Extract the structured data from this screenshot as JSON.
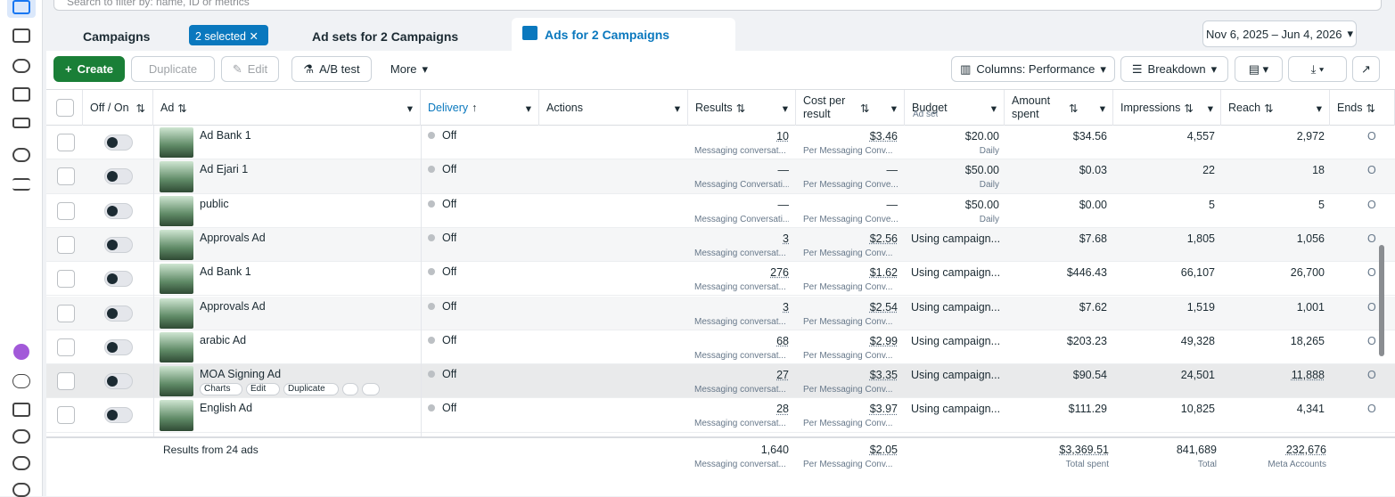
{
  "search": {
    "placeholder": "Search to filter by: name, ID or metrics"
  },
  "tabs": {
    "campaigns": "Campaigns",
    "selected": "2 selected",
    "adsets": "Ad sets for 2 Campaigns",
    "ads": "Ads for 2 Campaigns"
  },
  "date_range": "Nov 6, 2025 – Jun 4, 2026",
  "toolbar": {
    "create": "Create",
    "duplicate": "Duplicate",
    "edit": "Edit",
    "abtest": "A/B test",
    "more": "More",
    "columns": "Columns: Performance",
    "breakdown": "Breakdown"
  },
  "table": {
    "headers": {
      "offon": "Off / On",
      "ad": "Ad",
      "delivery": "Delivery",
      "actions": "Actions",
      "results": "Results",
      "cost": "Cost per result",
      "budget": "Budget",
      "budget_sub": "Ad set",
      "amount": "Amount spent",
      "impressions": "Impressions",
      "reach": "Reach",
      "ends": "Ends"
    },
    "rows": [
      {
        "ad": "Ad Bank 1",
        "delivery": "Off",
        "results": "10",
        "results_sub": "Messaging conversat...",
        "cost": "$3.46",
        "cost_sub": "Per Messaging Conv...",
        "budget": "$20.00",
        "budget_sub": "Daily",
        "amount": "$34.56",
        "impressions": "4,557",
        "reach": "2,972",
        "ends": "Ongoing"
      },
      {
        "ad": "Ad Ejari 1",
        "delivery": "Off",
        "results": "—",
        "results_sub": "Messaging Conversati...",
        "cost": "—",
        "cost_sub": "Per Messaging Conve...",
        "budget": "$50.00",
        "budget_sub": "Daily",
        "amount": "$0.03",
        "impressions": "22",
        "reach": "18",
        "ends": "Ongoing"
      },
      {
        "ad": "public",
        "delivery": "Off",
        "results": "—",
        "results_sub": "Messaging Conversati...",
        "cost": "—",
        "cost_sub": "Per Messaging Conve...",
        "budget": "$50.00",
        "budget_sub": "Daily",
        "amount": "$0.00",
        "impressions": "5",
        "reach": "5",
        "ends": "Ongoing"
      },
      {
        "ad": "Approvals Ad",
        "delivery": "Off",
        "results": "3",
        "results_sub": "Messaging conversat...",
        "cost": "$2.56",
        "cost_sub": "Per Messaging Conv...",
        "budget": "Using campaign...",
        "amount": "$7.68",
        "impressions": "1,805",
        "reach": "1,056",
        "ends": "Ongoing"
      },
      {
        "ad": "Ad Bank 1",
        "delivery": "Off",
        "results": "276",
        "results_sub": "Messaging conversat...",
        "cost": "$1.62",
        "cost_sub": "Per Messaging Conv...",
        "budget": "Using campaign...",
        "amount": "$446.43",
        "impressions": "66,107",
        "reach": "26,700",
        "ends": "Ongoing"
      },
      {
        "ad": "Approvals Ad",
        "delivery": "Off",
        "results": "3",
        "results_sub": "Messaging conversat...",
        "cost": "$2.54",
        "cost_sub": "Per Messaging Conv...",
        "budget": "Using campaign...",
        "amount": "$7.62",
        "impressions": "1,519",
        "reach": "1,001",
        "ends": "Ongoing"
      },
      {
        "ad": "arabic Ad",
        "delivery": "Off",
        "results": "68",
        "results_sub": "Messaging conversat...",
        "cost": "$2.99",
        "cost_sub": "Per Messaging Conv...",
        "budget": "Using campaign...",
        "amount": "$203.23",
        "impressions": "49,328",
        "reach": "18,265",
        "ends": "Ongoing"
      },
      {
        "ad": "MOA Signing Ad",
        "delivery": "Off",
        "results": "27",
        "results_sub": "Messaging conversat...",
        "cost": "$3.35",
        "cost_sub": "Per Messaging Conv...",
        "budget": "Using campaign...",
        "amount": "$90.54",
        "impressions": "24,501",
        "reach": "11,888",
        "ends": "Ongoing",
        "hover_actions": [
          "Charts",
          "Edit",
          "Duplicate"
        ]
      },
      {
        "ad": "English Ad",
        "delivery": "Off",
        "results": "28",
        "results_sub": "Messaging conversat...",
        "cost": "$3.97",
        "cost_sub": "Per Messaging Conv...",
        "budget": "Using campaign...",
        "amount": "$111.29",
        "impressions": "10,825",
        "reach": "4,341",
        "ends": "Ongoing"
      }
    ],
    "footer": {
      "label": "Results from 24 ads",
      "results": "1,640",
      "results_sub": "Messaging conversat...",
      "cost": "$2.05",
      "cost_sub": "Per Messaging Conv...",
      "amount": "$3,369.51",
      "amount_sub": "Total spent",
      "impressions": "841,689",
      "impressions_sub": "Total",
      "reach": "232,676",
      "reach_sub": "Meta Accounts"
    }
  }
}
